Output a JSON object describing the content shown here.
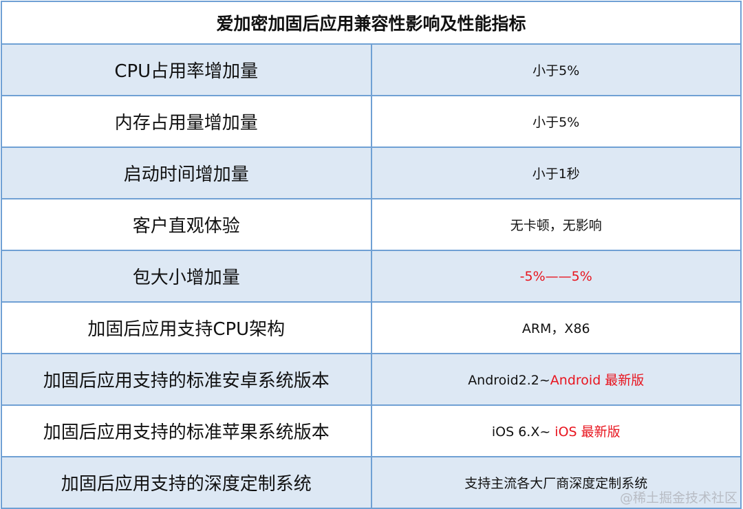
{
  "title": "爱加密加固后应用兼容性影响及性能指标",
  "colors": {
    "border": "#6fa0d4",
    "row_alt": "#dde8f4",
    "highlight": "#e8141e"
  },
  "rows": [
    {
      "label": "CPU占用率增加量",
      "value": [
        {
          "text": "小于5%",
          "color": "#111111"
        }
      ]
    },
    {
      "label": "内存占用量增加量",
      "value": [
        {
          "text": "小于5%",
          "color": "#111111"
        }
      ]
    },
    {
      "label": "启动时间增加量",
      "value": [
        {
          "text": "小于1秒",
          "color": "#111111"
        }
      ]
    },
    {
      "label": "客户直观体验",
      "value": [
        {
          "text": "无卡顿，无影响",
          "color": "#111111"
        }
      ]
    },
    {
      "label": "包大小增加量",
      "value": [
        {
          "text": "-5%——5%",
          "color": "#e8141e"
        }
      ]
    },
    {
      "label": "加固后应用支持CPU架构",
      "value": [
        {
          "text": "ARM，X86",
          "color": "#111111"
        }
      ]
    },
    {
      "label": "加固后应用支持的标准安卓系统版本",
      "value": [
        {
          "text": "Android2.2~",
          "color": "#111111"
        },
        {
          "text": "Android 最新版",
          "color": "#e8141e"
        }
      ]
    },
    {
      "label": "加固后应用支持的标准苹果系统版本",
      "value": [
        {
          "text": "iOS 6.X~ ",
          "color": "#111111"
        },
        {
          "text": "iOS 最新版",
          "color": "#e8141e"
        }
      ]
    },
    {
      "label": "加固后应用支持的深度定制系统",
      "value": [
        {
          "text": "支持主流各大厂商深度定制系统",
          "color": "#111111"
        }
      ]
    }
  ],
  "watermark": "@稀土掘金技术社区"
}
